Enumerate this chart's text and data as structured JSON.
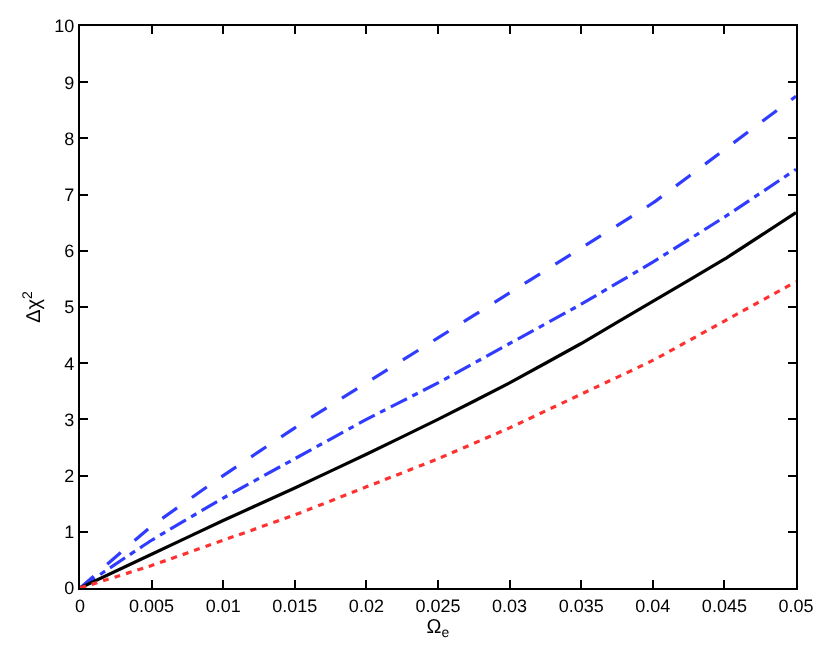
{
  "chart_data": {
    "type": "line",
    "xlabel": "Ω$_{e}$",
    "ylabel": "Δχ$^{2}$",
    "x": [
      0,
      0.005,
      0.01,
      0.015,
      0.02,
      0.025,
      0.03,
      0.035,
      0.04,
      0.045,
      0.05
    ],
    "series": [
      {
        "color": "#2f3cff",
        "line_style": "dashed",
        "values": [
          0,
          1.1,
          2.0,
          2.85,
          3.65,
          4.45,
          5.25,
          6.05,
          6.85,
          7.8,
          8.75
        ]
      },
      {
        "color": "#2f3cff",
        "line_style": "dashdot",
        "values": [
          0,
          0.85,
          1.6,
          2.3,
          3.0,
          3.65,
          4.35,
          5.05,
          5.8,
          6.6,
          7.45
        ]
      },
      {
        "color": "#000000",
        "line_style": "solid",
        "values": [
          0,
          0.6,
          1.2,
          1.78,
          2.38,
          3.0,
          3.65,
          4.35,
          5.1,
          5.85,
          6.68
        ]
      },
      {
        "color": "#ff3030",
        "line_style": "dotted",
        "values": [
          0,
          0.4,
          0.85,
          1.3,
          1.8,
          2.3,
          2.85,
          3.45,
          4.05,
          4.75,
          5.45
        ]
      }
    ],
    "xlim": [
      0,
      0.05
    ],
    "xticks": [
      0,
      0.005,
      0.01,
      0.015,
      0.02,
      0.025,
      0.03,
      0.035,
      0.04,
      0.045,
      0.05
    ],
    "ylim": [
      0,
      10
    ],
    "yticks": [
      0,
      1,
      2,
      3,
      4,
      5,
      6,
      7,
      8,
      9,
      10
    ],
    "legend": false,
    "marker": "none"
  }
}
